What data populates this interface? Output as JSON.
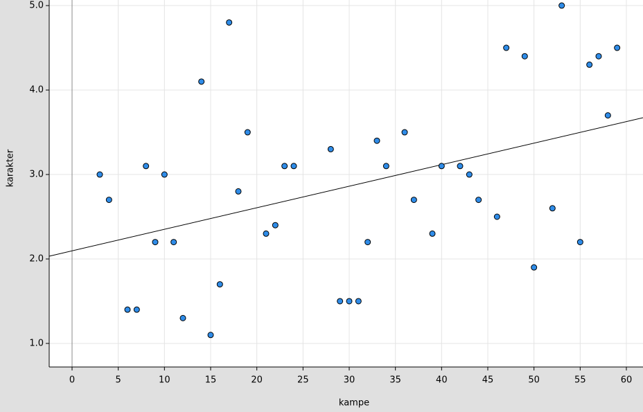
{
  "chart_data": {
    "type": "scatter",
    "x_label": "kampe",
    "y_label": "karakter",
    "x": [
      3,
      4,
      6,
      7,
      8,
      9,
      10,
      11,
      12,
      14,
      15,
      16,
      17,
      18,
      19,
      21,
      22,
      23,
      24,
      28,
      29,
      30,
      31,
      32,
      33,
      34,
      36,
      37,
      39,
      40,
      42,
      43,
      44,
      46,
      47,
      49,
      50,
      52,
      53,
      55,
      56,
      57,
      58,
      59
    ],
    "values": [
      3.0,
      2.7,
      1.4,
      1.4,
      3.1,
      2.2,
      3.0,
      2.2,
      1.3,
      4.1,
      1.1,
      1.7,
      4.8,
      2.8,
      3.5,
      2.3,
      2.4,
      3.1,
      3.1,
      3.3,
      1.5,
      1.5,
      1.5,
      2.2,
      3.4,
      3.1,
      3.5,
      2.7,
      2.3,
      3.1,
      3.1,
      3.0,
      2.7,
      2.5,
      4.5,
      4.4,
      1.9,
      2.6,
      5.0,
      2.2,
      4.3,
      4.4,
      3.7,
      4.5
    ],
    "color": "#2f8ce8",
    "trendline": {
      "x": [
        -2.475,
        61.8
      ],
      "values": [
        2.033,
        3.672
      ],
      "color": "#000000"
    },
    "xlim": [
      -2.475,
      61.8
    ],
    "ylim": [
      0.721,
      5.066
    ],
    "xticks": [
      0,
      5,
      10,
      15,
      20,
      25,
      30,
      35,
      40,
      45,
      50,
      55,
      60
    ],
    "yticks": [
      {
        "value": 1,
        "label": "1.0"
      },
      {
        "value": 2,
        "label": "2.0"
      },
      {
        "value": 3,
        "label": "3.0"
      },
      {
        "value": 4,
        "label": "4.0"
      },
      {
        "value": 5,
        "label": "5.0"
      }
    ],
    "grid": true
  }
}
